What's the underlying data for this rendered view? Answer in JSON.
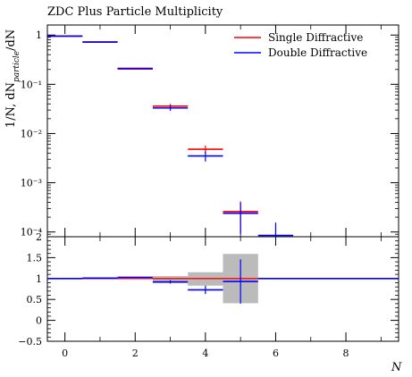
{
  "chart_data": [
    {
      "panel": "main",
      "type": "step",
      "title": "ZDC Plus Particle Multiplicity",
      "ylabel": "1/N, dN_particle/dN",
      "yscale": "log",
      "ylim": [
        8e-05,
        1.6
      ],
      "xlim": [
        -0.5,
        9.5
      ],
      "y_ticks": [
        {
          "value": 1,
          "label": "1"
        },
        {
          "value": 0.1,
          "label": "10⁻¹"
        },
        {
          "value": 0.01,
          "label": "10⁻²"
        },
        {
          "value": 0.001,
          "label": "10⁻³"
        },
        {
          "value": 0.0001,
          "label": "10⁻⁴"
        }
      ],
      "legend_position": "top-right",
      "series": [
        {
          "name": "Single Diffractive",
          "color": "#ff0000",
          "points": [
            {
              "x": 0,
              "y": 0.95
            },
            {
              "x": 1,
              "y": 0.72
            },
            {
              "x": 2,
              "y": 0.205
            },
            {
              "x": 3,
              "y": 0.036,
              "err": 0.004
            },
            {
              "x": 4,
              "y": 0.0048,
              "err": 0.0009
            },
            {
              "x": 5,
              "y": 0.00026,
              "err": 0.00016
            }
          ]
        },
        {
          "name": "Double Diffractive",
          "color": "#0000ff",
          "points": [
            {
              "x": 0,
              "y": 0.95
            },
            {
              "x": 1,
              "y": 0.72
            },
            {
              "x": 2,
              "y": 0.21
            },
            {
              "x": 3,
              "y": 0.033,
              "err": 0.004
            },
            {
              "x": 4,
              "y": 0.0035,
              "err": 0.0008
            },
            {
              "x": 5,
              "y": 0.00024,
              "err": 0.00015
            },
            {
              "x": 6,
              "y": 8.5e-05,
              "err": 7e-05
            }
          ]
        }
      ]
    },
    {
      "panel": "ratio",
      "type": "step",
      "ylim": [
        -0.5,
        2
      ],
      "xlim": [
        -0.5,
        9.5
      ],
      "xlabel": "N",
      "x_ticks": [
        {
          "value": 0,
          "label": "0"
        },
        {
          "value": 2,
          "label": "2"
        },
        {
          "value": 4,
          "label": "4"
        },
        {
          "value": 6,
          "label": "6"
        },
        {
          "value": 8,
          "label": "8"
        }
      ],
      "y_ticks": [
        {
          "value": 2,
          "label": "2"
        },
        {
          "value": 1.5,
          "label": "1.5"
        },
        {
          "value": 1,
          "label": "1"
        },
        {
          "value": 0.5,
          "label": "0.5"
        },
        {
          "value": 0,
          "label": "0"
        },
        {
          "value": -0.5,
          "label": "−0.5"
        }
      ],
      "reference_line": {
        "color": "#ff0000",
        "value": 1
      },
      "uncertainty_band": {
        "color": "#bbbbbb",
        "bins": [
          {
            "x": 3,
            "lo": 0.89,
            "hi": 1.06
          },
          {
            "x": 4,
            "lo": 0.83,
            "hi": 1.15
          },
          {
            "x": 5,
            "lo": 0.41,
            "hi": 1.59
          }
        ]
      },
      "series": [
        {
          "name": "Double Diffractive",
          "color": "#0000ff",
          "points": [
            {
              "x": 0,
              "y": 1.0
            },
            {
              "x": 1,
              "y": 1.01
            },
            {
              "x": 2,
              "y": 1.03
            },
            {
              "x": 3,
              "y": 0.92,
              "err": 0.04
            },
            {
              "x": 4,
              "y": 0.73,
              "err": 0.1
            },
            {
              "x": 5,
              "y": 0.93,
              "err": 0.53
            },
            {
              "x": 6,
              "y": 1.0
            },
            {
              "x": 7,
              "y": 1.0
            },
            {
              "x": 8,
              "y": 1.0
            },
            {
              "x": 9,
              "y": 1.0
            }
          ]
        }
      ]
    }
  ]
}
